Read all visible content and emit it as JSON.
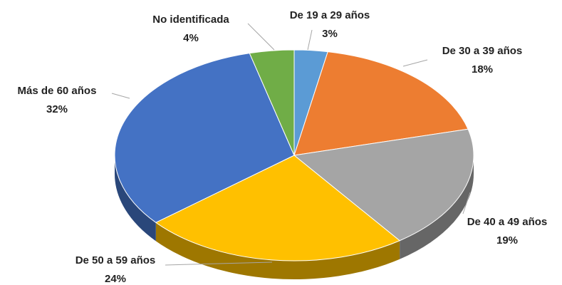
{
  "chart_data": {
    "type": "pie",
    "categories": [
      "De 19 a 29 años",
      "De 30 a 39 años",
      "De 40 a 49 años",
      "De 50 a 59 años",
      "Más de 60 años",
      "No identificada"
    ],
    "values": [
      3,
      18,
      19,
      24,
      32,
      4
    ],
    "value_labels": [
      "3%",
      "18%",
      "19%",
      "24%",
      "32%",
      "4%"
    ],
    "colors": [
      "#5B9BD5",
      "#ED7D31",
      "#A5A5A5",
      "#FFC000",
      "#4472C4",
      "#70AD47"
    ]
  }
}
